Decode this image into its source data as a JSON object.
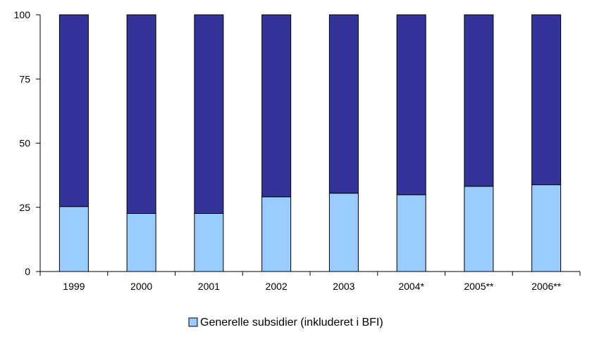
{
  "chart_data": {
    "type": "bar",
    "stacked": true,
    "categories": [
      "1999",
      "2000",
      "2001",
      "2002",
      "2003",
      "2004*",
      "2005**",
      "2006**"
    ],
    "series": [
      {
        "name": "Generelle subsidier (inkluderet i BFI)",
        "color": "#99ccff",
        "values": [
          25.3,
          22.6,
          22.6,
          29.1,
          30.5,
          29.9,
          33.2,
          33.8
        ]
      },
      {
        "color": "#333399",
        "values": [
          74.7,
          77.4,
          77.4,
          70.9,
          69.5,
          70.1,
          66.8,
          66.2
        ]
      }
    ],
    "y_ticks": [
      "0",
      "25",
      "50",
      "75",
      "100"
    ],
    "ylim": [
      0,
      100
    ],
    "grid": false,
    "legend": {
      "placement": "bottom-center"
    },
    "title": "",
    "xlabel": "",
    "ylabel": ""
  }
}
